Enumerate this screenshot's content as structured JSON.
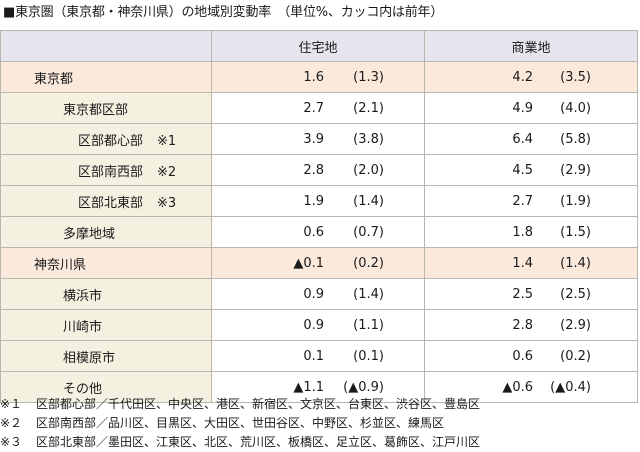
{
  "title": "■東京圏（東京都・神奈川県）の地域別変動率　（単位%、カッコ内は前年）",
  "columns": {
    "region": "",
    "residential": "住宅地",
    "commercial": "商業地"
  },
  "rows": [
    {
      "name": "東京都",
      "level": 0,
      "mark": "",
      "pref": true,
      "residential": {
        "cur": "1.6",
        "prev": "(1.3)"
      },
      "commercial": {
        "cur": "4.2",
        "prev": "(3.5)"
      }
    },
    {
      "name": "東京都区部",
      "level": 1,
      "mark": "",
      "pref": false,
      "residential": {
        "cur": "2.7",
        "prev": "(2.1)"
      },
      "commercial": {
        "cur": "4.9",
        "prev": "(4.0)"
      }
    },
    {
      "name": "区部都心部",
      "level": 2,
      "mark": "※1",
      "pref": false,
      "residential": {
        "cur": "3.9",
        "prev": "(3.8)"
      },
      "commercial": {
        "cur": "6.4",
        "prev": "(5.8)"
      }
    },
    {
      "name": "区部南西部",
      "level": 2,
      "mark": "※2",
      "pref": false,
      "residential": {
        "cur": "2.8",
        "prev": "(2.0)"
      },
      "commercial": {
        "cur": "4.5",
        "prev": "(2.9)"
      }
    },
    {
      "name": "区部北東部",
      "level": 2,
      "mark": "※3",
      "pref": false,
      "residential": {
        "cur": "1.9",
        "prev": "(1.4)"
      },
      "commercial": {
        "cur": "2.7",
        "prev": "(1.9)"
      }
    },
    {
      "name": "多摩地域",
      "level": 1,
      "mark": "",
      "pref": false,
      "residential": {
        "cur": "0.6",
        "prev": "(0.7)"
      },
      "commercial": {
        "cur": "1.8",
        "prev": "(1.5)"
      }
    },
    {
      "name": "神奈川県",
      "level": 0,
      "mark": "",
      "pref": true,
      "residential": {
        "cur": "▲0.1",
        "prev": "(0.2)"
      },
      "commercial": {
        "cur": "1.4",
        "prev": "(1.4)"
      }
    },
    {
      "name": "横浜市",
      "level": 1,
      "mark": "",
      "pref": false,
      "residential": {
        "cur": "0.9",
        "prev": "(1.4)"
      },
      "commercial": {
        "cur": "2.5",
        "prev": "(2.5)"
      }
    },
    {
      "name": "川崎市",
      "level": 1,
      "mark": "",
      "pref": false,
      "residential": {
        "cur": "0.9",
        "prev": "(1.1)"
      },
      "commercial": {
        "cur": "2.8",
        "prev": "(2.9)"
      }
    },
    {
      "name": "相模原市",
      "level": 1,
      "mark": "",
      "pref": false,
      "residential": {
        "cur": "0.1",
        "prev": "(0.1)"
      },
      "commercial": {
        "cur": "0.6",
        "prev": "(0.2)"
      }
    },
    {
      "name": "その他",
      "level": 1,
      "mark": "",
      "pref": false,
      "residential": {
        "cur": "▲1.1",
        "prev": "(▲0.9)"
      },
      "commercial": {
        "cur": "▲0.6",
        "prev": "(▲0.4)"
      }
    }
  ],
  "notes": [
    {
      "mark": "※１",
      "text": "区部都心部／千代田区、中央区、港区、新宿区、文京区、台東区、渋谷区、豊島区"
    },
    {
      "mark": "※２",
      "text": "区部南西部／品川区、目黒区、大田区、世田谷区、中野区、杉並区、練馬区"
    },
    {
      "mark": "※３",
      "text": "区部北東部／墨田区、江東区、北区、荒川区、板橋区、足立区、葛飾区、江戸川区"
    }
  ]
}
